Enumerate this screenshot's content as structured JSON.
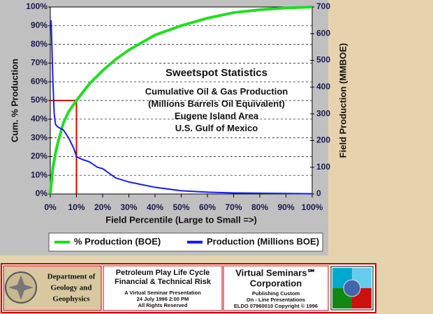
{
  "chart_data": {
    "type": "line",
    "title": "Sweetspot Statistics",
    "subtitle": [
      "Cumulative Oil & Gas Production",
      "(Millions Barrels Oil Equivalent)",
      "Eugene Island Area",
      "U.S. Gulf of Mexico"
    ],
    "xlabel": "Field Percentile (Large to Small =>)",
    "ylabel": "Cum. % Production",
    "y2label": "Field Production (MMBOE)",
    "xlim": [
      0,
      100
    ],
    "xticks": [
      {
        "value": 0,
        "label": "0%"
      },
      {
        "value": 10,
        "label": "10%"
      },
      {
        "value": 20,
        "label": "20%"
      },
      {
        "value": 30,
        "label": "30%"
      },
      {
        "value": 40,
        "label": "40%"
      },
      {
        "value": 50,
        "label": "50%"
      },
      {
        "value": 60,
        "label": "60%"
      },
      {
        "value": 70,
        "label": "70%"
      },
      {
        "value": 80,
        "label": "80%"
      },
      {
        "value": 90,
        "label": "90%"
      },
      {
        "value": 100,
        "label": "100%"
      }
    ],
    "ylim": [
      0,
      100
    ],
    "yticks": [
      {
        "value": 0,
        "label": "0%"
      },
      {
        "value": 10,
        "label": "10%"
      },
      {
        "value": 20,
        "label": "20%"
      },
      {
        "value": 30,
        "label": "30%"
      },
      {
        "value": 40,
        "label": "40%"
      },
      {
        "value": 50,
        "label": "50%"
      },
      {
        "value": 60,
        "label": "60%"
      },
      {
        "value": 70,
        "label": "70%"
      },
      {
        "value": 80,
        "label": "80%"
      },
      {
        "value": 90,
        "label": "90%"
      },
      {
        "value": 100,
        "label": "100%"
      }
    ],
    "y2lim": [
      0,
      700
    ],
    "y2ticks": [
      0,
      100,
      200,
      300,
      400,
      500,
      600,
      700
    ],
    "grid": true,
    "series": [
      {
        "name": "% Production (BOE)",
        "color": "#22dd22",
        "x": [
          0,
          1,
          2,
          3,
          5,
          7,
          10,
          15,
          20,
          25,
          30,
          40,
          50,
          60,
          70,
          80,
          90,
          100
        ],
        "values": [
          0,
          14,
          22,
          28,
          38,
          44,
          50,
          59,
          66,
          72,
          77,
          85,
          90,
          94,
          97,
          98.5,
          99.5,
          100
        ]
      },
      {
        "name": "Production (Millions BOE)",
        "color": "#1a1aff",
        "axis": "y2",
        "x": [
          0.3,
          0.6,
          1,
          1.5,
          2,
          3,
          5,
          7,
          9,
          10,
          12,
          15,
          18,
          20,
          25,
          30,
          35,
          40,
          50,
          60,
          70,
          80,
          90,
          100
        ],
        "values": [
          650,
          560,
          420,
          300,
          260,
          250,
          240,
          210,
          170,
          140,
          130,
          120,
          100,
          95,
          60,
          45,
          35,
          25,
          12,
          7,
          4,
          3,
          2,
          1
        ]
      }
    ],
    "reference": {
      "x": 10,
      "y": 50,
      "color": "#dd0000"
    }
  },
  "banner": {
    "department": [
      "Department of",
      "Geology and",
      "Geophysics"
    ],
    "title": [
      "Petroleum Play Life Cycle",
      "Financial & Technical Risk"
    ],
    "details": [
      "A Virtual Seminar Presentation",
      "24 July 1996  2:00 PM",
      "All Rights Reserved"
    ],
    "company": [
      "Virtual Seminars℠",
      "Corporation"
    ],
    "company_details": [
      "Publishing Custom",
      "On - Line Presentations",
      "ELDO 07960010 Copyright © 1996"
    ]
  }
}
